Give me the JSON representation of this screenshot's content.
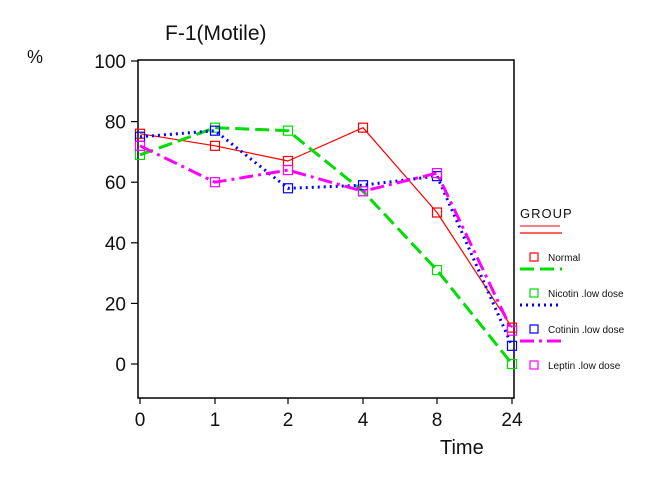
{
  "chart_data": {
    "type": "line",
    "title": "F-1(Motile)",
    "xlabel": "Time",
    "ylabel": "%",
    "categories": [
      "0",
      "1",
      "2",
      "4",
      "8",
      "24"
    ],
    "ylim": [
      0,
      100
    ],
    "yticks": [
      0,
      20,
      40,
      60,
      80,
      100
    ],
    "grid": false,
    "legend_title": "GROUP",
    "legend_position": "right",
    "series": [
      {
        "name": "Normal",
        "values": [
          76,
          72,
          67,
          78,
          50,
          12
        ],
        "color": "#ff0000",
        "style": "solid"
      },
      {
        "name": "Nicotin .low dose",
        "values": [
          69,
          78,
          77,
          57,
          31,
          0
        ],
        "color": "#00dd00",
        "style": "dashed"
      },
      {
        "name": "Cotinin .low dose",
        "values": [
          75,
          77,
          58,
          59,
          62,
          6
        ],
        "color": "#0000ff",
        "style": "dotted"
      },
      {
        "name": "Leptin .low dose",
        "values": [
          72,
          60,
          64,
          57,
          63,
          11
        ],
        "color": "#ff00ff",
        "style": "dashdot"
      }
    ]
  }
}
